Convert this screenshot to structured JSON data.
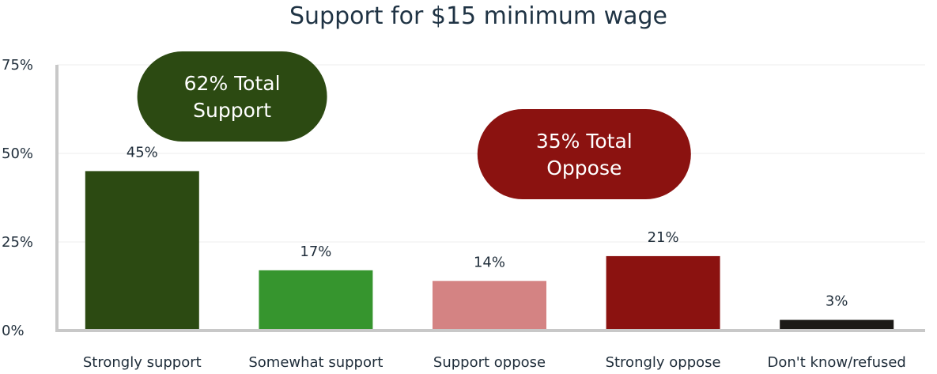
{
  "chart_data": {
    "type": "bar",
    "title": "Support for $15 minimum wage",
    "categories": [
      "Strongly support",
      "Somewhat support",
      "Support oppose",
      "Strongly oppose",
      "Don't know/refused"
    ],
    "values": [
      45,
      17,
      14,
      21,
      3
    ],
    "data_labels": [
      "45%",
      "17%",
      "14%",
      "21%",
      "3%"
    ],
    "bar_colors": [
      "#2c4a12",
      "#36952e",
      "#d48383",
      "#8b1210",
      "#1c1a17"
    ],
    "ylim": [
      0,
      75
    ],
    "yticks": [
      0,
      25,
      50,
      75
    ],
    "ytick_labels": [
      "0%",
      "25%",
      "50%",
      "75%"
    ],
    "grid": true,
    "xlabel": "",
    "ylabel": "",
    "annotations": [
      {
        "id": "support",
        "line1": "62% Total",
        "line2": "Support",
        "color": "#2c4a12"
      },
      {
        "id": "oppose",
        "line1": "35% Total",
        "line2": "Oppose",
        "color": "#8b1210"
      }
    ]
  }
}
